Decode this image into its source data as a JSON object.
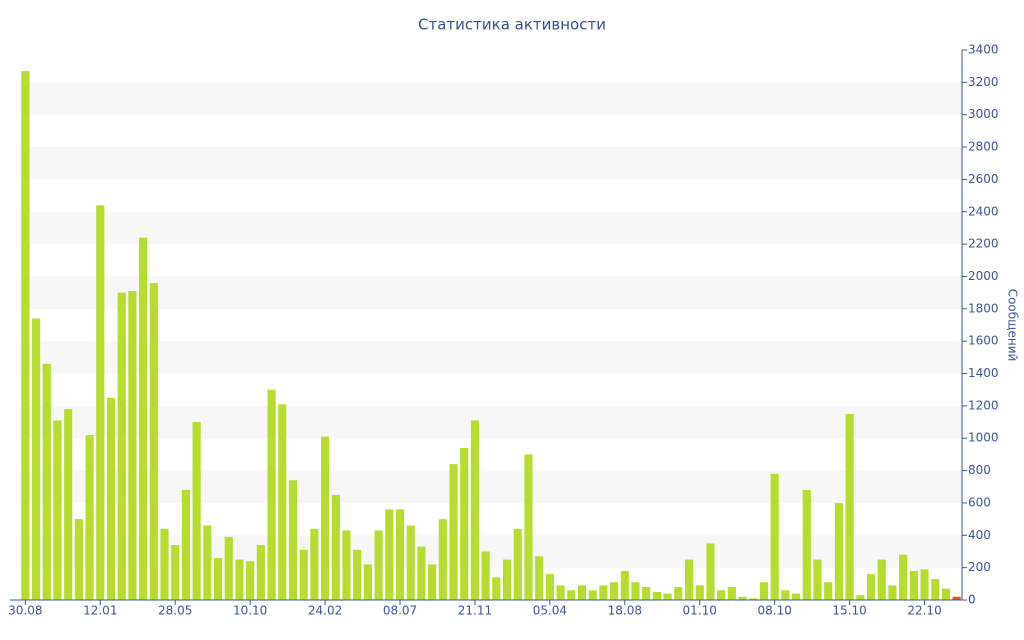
{
  "chart_data": {
    "type": "bar",
    "title": "Статистика активности",
    "y_label": "Сообщений",
    "categories": [
      "30.08",
      null,
      null,
      null,
      null,
      null,
      null,
      "12.01",
      null,
      null,
      null,
      null,
      null,
      null,
      "28.05",
      null,
      null,
      null,
      null,
      null,
      null,
      "10.10",
      null,
      null,
      null,
      null,
      null,
      null,
      "24.02",
      null,
      null,
      null,
      null,
      null,
      null,
      "08.07",
      null,
      null,
      null,
      null,
      null,
      null,
      "21.11",
      null,
      null,
      null,
      null,
      null,
      null,
      "05.04",
      null,
      null,
      null,
      null,
      null,
      null,
      "18.08",
      null,
      null,
      null,
      null,
      null,
      null,
      "01.10",
      null,
      null,
      null,
      null,
      null,
      null,
      "08.10",
      null,
      null,
      null,
      null,
      null,
      null,
      "15.10",
      null,
      null,
      null,
      null,
      null,
      null,
      "22.10",
      null,
      null,
      null
    ],
    "values": [
      3270,
      1740,
      1460,
      1110,
      1180,
      500,
      1020,
      2440,
      1250,
      1900,
      1910,
      2240,
      1960,
      440,
      340,
      680,
      1100,
      460,
      260,
      390,
      250,
      240,
      340,
      1300,
      1210,
      740,
      310,
      440,
      1010,
      650,
      430,
      310,
      220,
      430,
      560,
      560,
      460,
      330,
      220,
      500,
      840,
      940,
      1110,
      300,
      140,
      250,
      440,
      900,
      270,
      160,
      90,
      60,
      90,
      60,
      90,
      110,
      180,
      110,
      80,
      50,
      40,
      80,
      250,
      90,
      350,
      60,
      80,
      20,
      10,
      110,
      780,
      60,
      40,
      680,
      250,
      110,
      600,
      1150,
      30,
      160,
      250,
      90,
      280,
      180,
      190,
      130,
      70,
      20
    ],
    "color": "#b5dc2e",
    "last_bar_color": "#e2572a",
    "ylim": [
      0,
      3400
    ],
    "yticks": [
      0,
      200,
      400,
      600,
      800,
      1000,
      1200,
      1400,
      1600,
      1800,
      2000,
      2200,
      2400,
      2600,
      2800,
      3000,
      3200,
      3400
    ],
    "banded_grid": true,
    "y_axis_side": "right"
  }
}
